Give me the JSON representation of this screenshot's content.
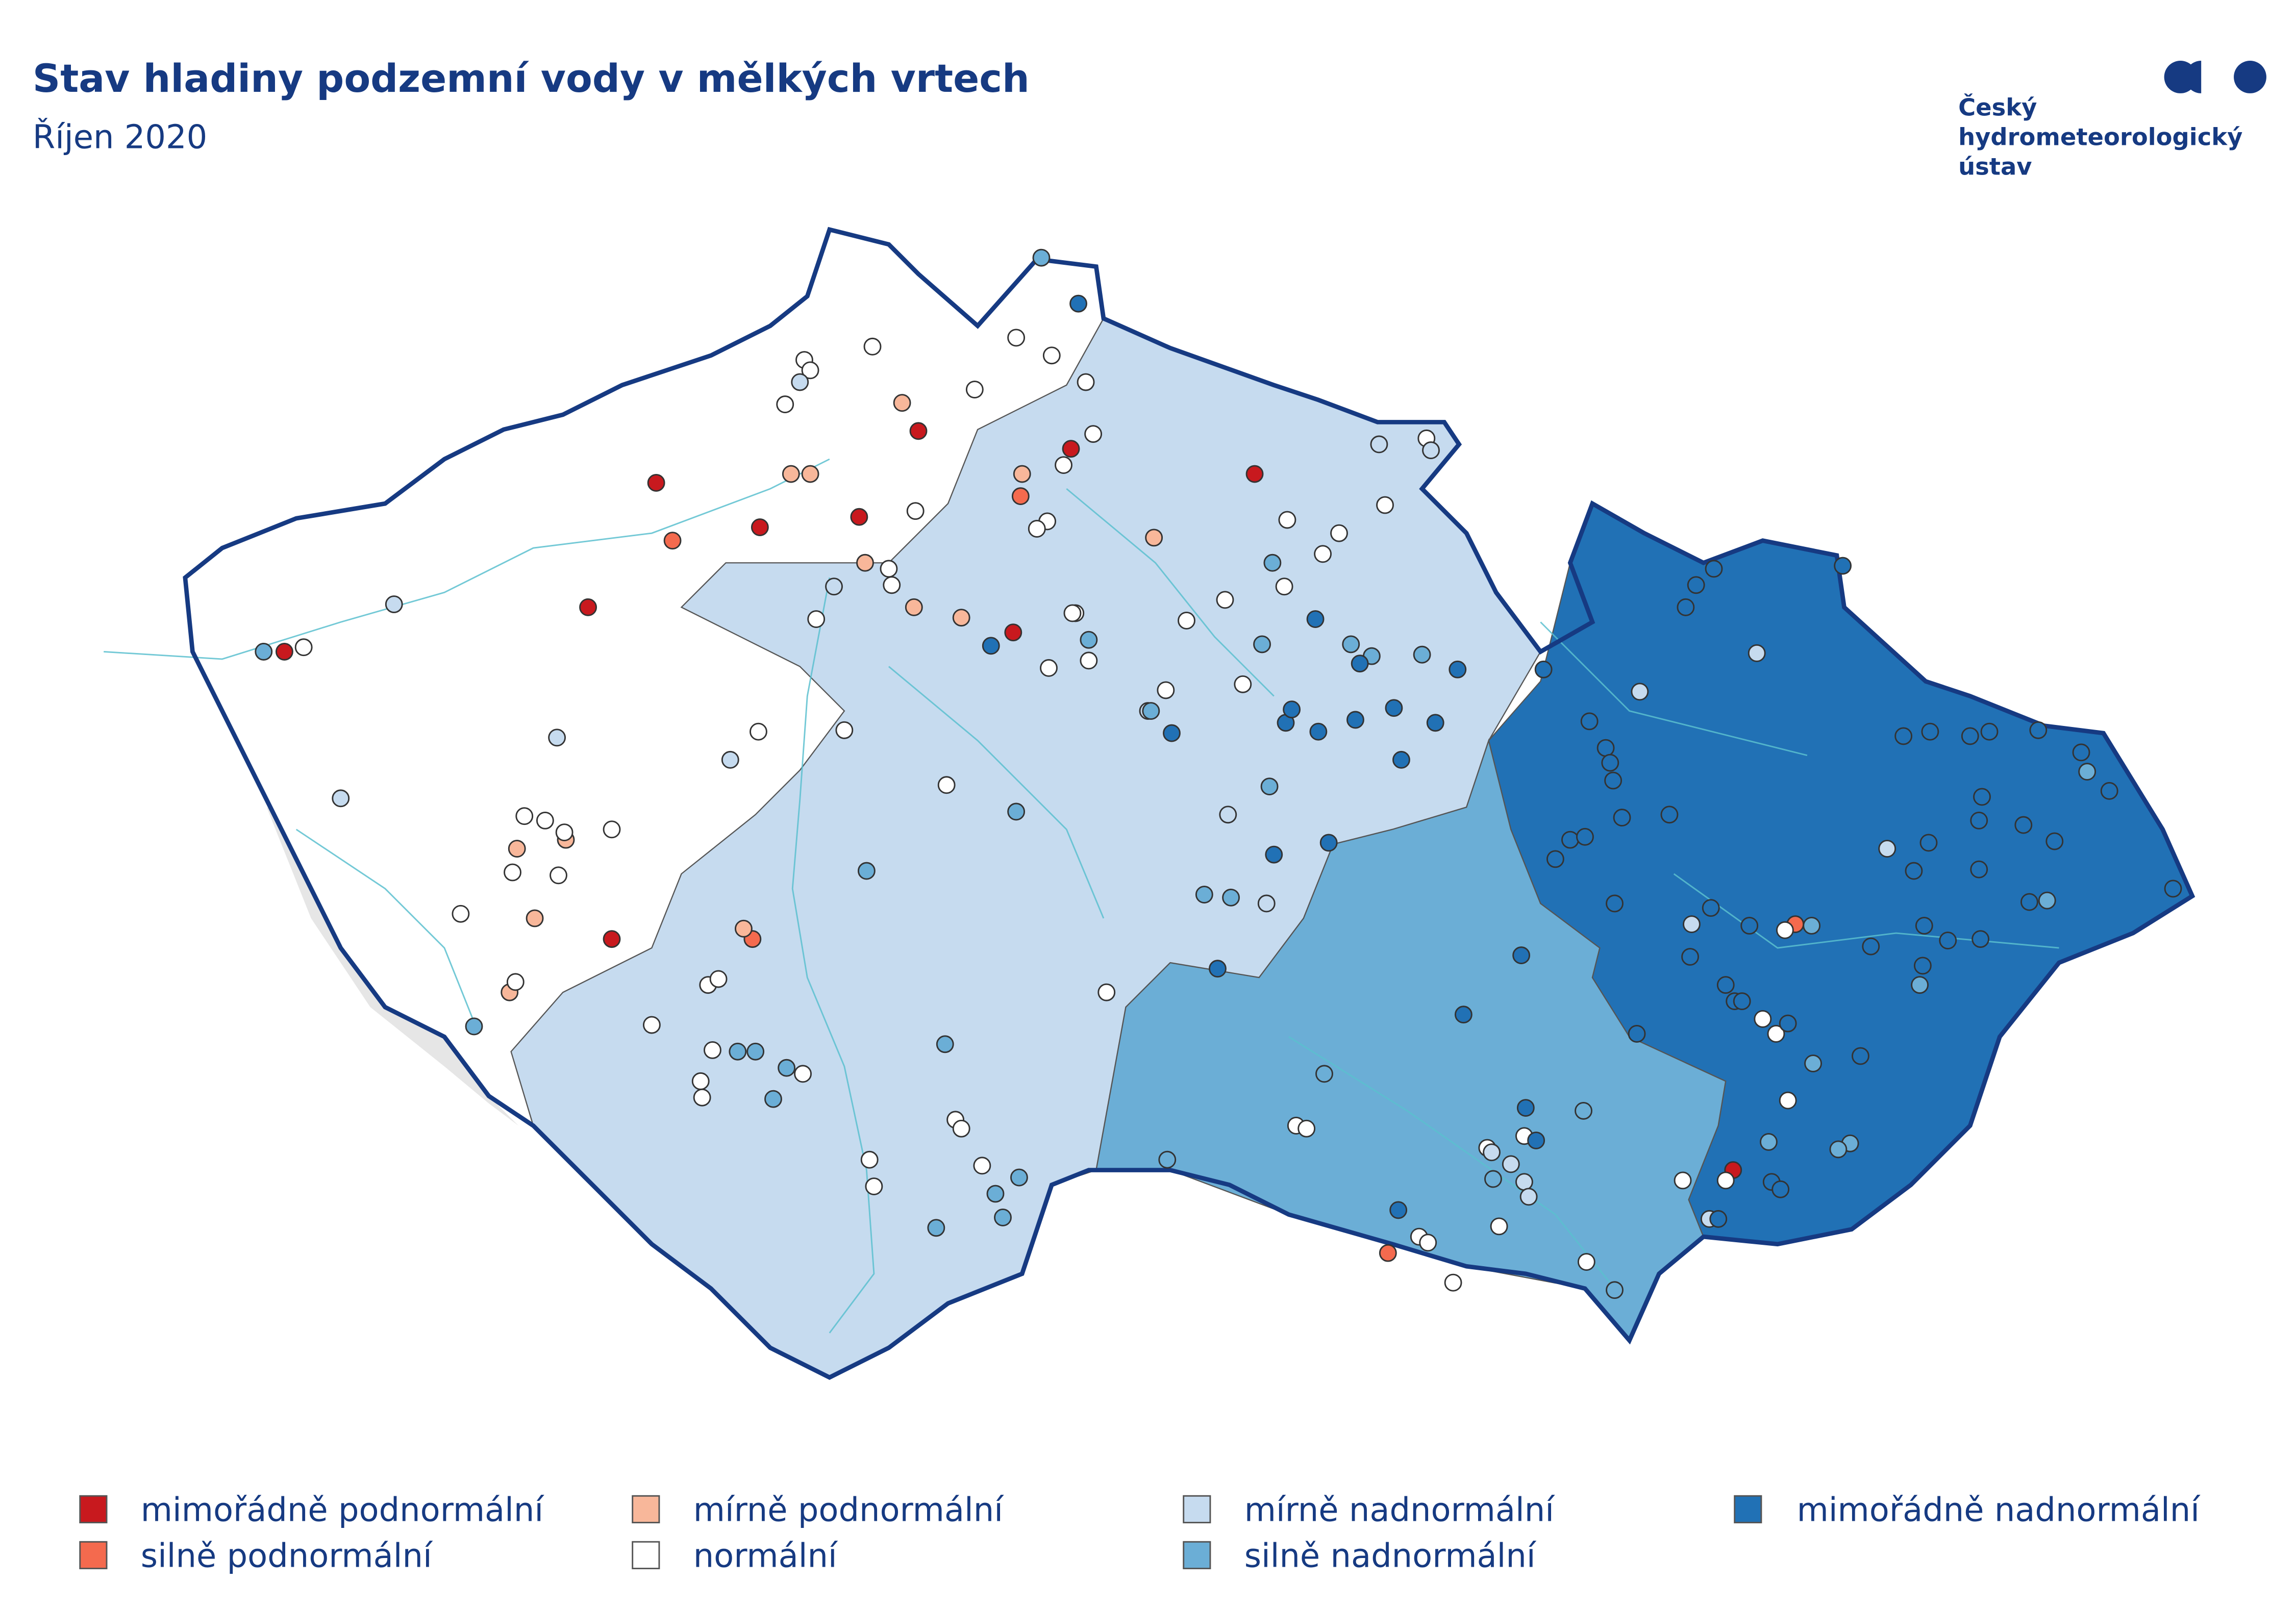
{
  "header": {
    "title": "Stav hladiny podzemní vody v mělkých vrtech",
    "subtitle": "Říjen 2020"
  },
  "logo": {
    "line1": "Český",
    "line2": "hydrometeorologický",
    "line3": "ústav",
    "color": "#163a82"
  },
  "categories": {
    "r1": {
      "label": "mimořádně podnormální",
      "color": "#c8191e"
    },
    "r2": {
      "label": "silně podnormální",
      "color": "#f46a4e"
    },
    "r3": {
      "label": "mírně podnormální",
      "color": "#f8b79a"
    },
    "n": {
      "label": "normální",
      "color": "#ffffff"
    },
    "b1": {
      "label": "mírně nadnormální",
      "color": "#c6dbef"
    },
    "b2": {
      "label": "silně nadnormální",
      "color": "#6baed6"
    },
    "b3": {
      "label": "mimořádně nadnormální",
      "color": "#2171b5"
    }
  },
  "map": {
    "border_color": "#163a82",
    "river_color": "#5bc0cf",
    "outside_color": "#e6e6e6"
  }
}
